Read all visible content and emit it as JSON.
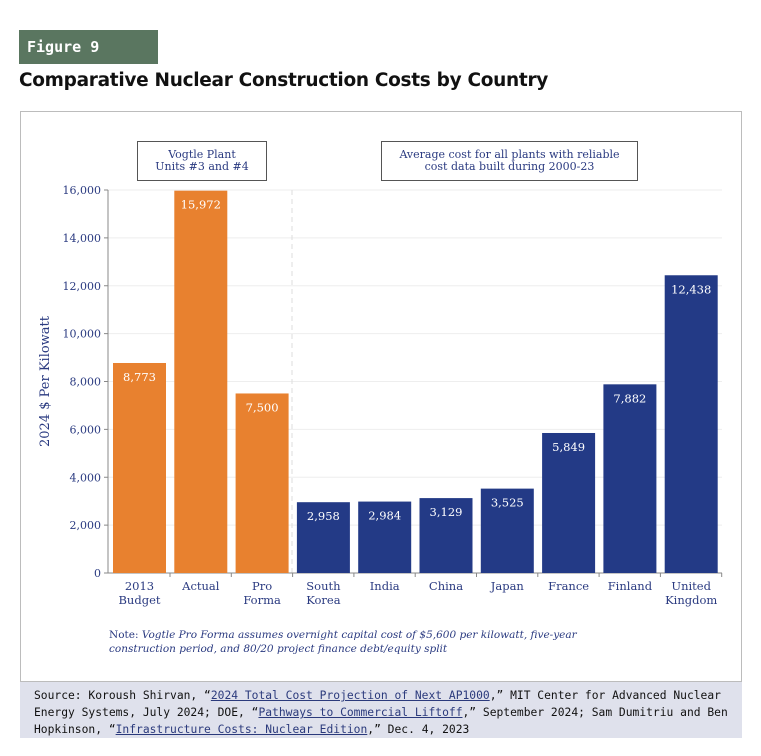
{
  "figure_label": "Figure 9",
  "title": "Comparative Nuclear Construction Costs by Country",
  "annotations": {
    "vogtle": [
      "Vogtle Plant",
      "Units #3 and #4"
    ],
    "average": [
      "Average cost for all plants with reliable",
      "cost data built during 2000-23"
    ]
  },
  "note": {
    "label": "Note:",
    "text": "Vogtle Pro Forma assumes overnight capital cost of $5,600 per kilowatt, five-year construction period, and 80/20 project finance debt/equity split"
  },
  "source": {
    "prefix": "Source: Koroush Shirvan, “",
    "link1": "2024 Total Cost Projection of Next AP1000",
    "mid1": ",” MIT Center for Advanced Nuclear Energy Systems, July 2024; DOE, “",
    "link2": "Pathways to Commercial Liftoff",
    "mid2": ",” September 2024; Sam Dumitriu and Ben Hopkinson, “",
    "link3": "Infrastructure Costs: Nuclear Edition",
    "suffix": ",” Dec. 4, 2023"
  },
  "colors": {
    "vogtle": "#E8812F",
    "country": "#233A86",
    "text": "#2a3a80"
  },
  "chart_data": {
    "type": "bar",
    "title": "Comparative Nuclear Construction Costs by Country",
    "xlabel": "",
    "ylabel": "2024 $ Per Kilowatt",
    "ylim": [
      0,
      16000
    ],
    "yticks": [
      0,
      2000,
      4000,
      6000,
      8000,
      10000,
      12000,
      14000,
      16000
    ],
    "ytick_labels": [
      "0",
      "2,000",
      "4,000",
      "6,000",
      "8,000",
      "10,000",
      "12,000",
      "14,000",
      "16,000"
    ],
    "grid": true,
    "categories": [
      [
        "2013",
        "Budget"
      ],
      [
        "Actual"
      ],
      [
        "Pro",
        "Forma"
      ],
      [
        "South",
        "Korea"
      ],
      [
        "India"
      ],
      [
        "China"
      ],
      [
        "Japan"
      ],
      [
        "France"
      ],
      [
        "Finland"
      ],
      [
        "United",
        "Kingdom"
      ]
    ],
    "values": [
      8773,
      15972,
      7500,
      2958,
      2984,
      3129,
      3525,
      5849,
      7882,
      12438
    ],
    "value_labels": [
      "8,773",
      "15,972",
      "7,500",
      "2,958",
      "2,984",
      "3,129",
      "3,525",
      "5,849",
      "7,882",
      "12,438"
    ],
    "groups": [
      "vogtle",
      "vogtle",
      "vogtle",
      "country",
      "country",
      "country",
      "country",
      "country",
      "country",
      "country"
    ]
  }
}
